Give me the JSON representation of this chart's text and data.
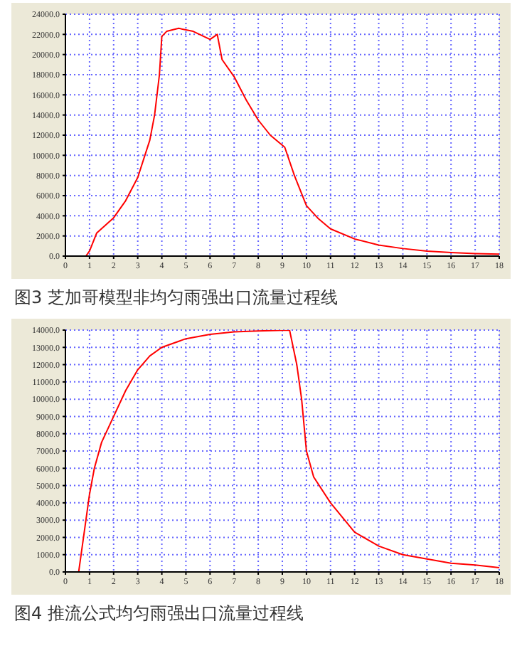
{
  "chart_data": [
    {
      "type": "line",
      "title": "图3 芝加哥模型非均匀雨强出口流量过程线",
      "grid": true,
      "xlim": [
        0,
        18
      ],
      "xticks": [
        0,
        1,
        2,
        3,
        4,
        5,
        6,
        7,
        8,
        9,
        10,
        11,
        12,
        13,
        14,
        15,
        16,
        17,
        18
      ],
      "ylim": [
        0,
        24000
      ],
      "yticks": [
        {
          "value": 0,
          "label": "0.0"
        },
        {
          "value": 2000,
          "label": "2000.0"
        },
        {
          "value": 4000,
          "label": "4000.0"
        },
        {
          "value": 6000,
          "label": "6000.0"
        },
        {
          "value": 8000,
          "label": "8000.0"
        },
        {
          "value": 10000,
          "label": "10000.0"
        },
        {
          "value": 12000,
          "label": "12000.0"
        },
        {
          "value": 14000,
          "label": "14000.0"
        },
        {
          "value": 16000,
          "label": "16000.0"
        },
        {
          "value": 18000,
          "label": "18000.0"
        },
        {
          "value": 20000,
          "label": "20000.0"
        },
        {
          "value": 22000,
          "label": "22000.0"
        },
        {
          "value": 24000,
          "label": "24000.0"
        }
      ],
      "x": [
        0.85,
        1,
        1.3,
        2,
        2.5,
        3,
        3.5,
        3.7,
        3.9,
        4,
        4.2,
        4.7,
        5.3,
        6,
        6.3,
        6.5,
        7,
        7.5,
        8,
        8.5,
        9.1,
        9.5,
        10,
        10.5,
        11,
        12,
        13,
        14,
        15,
        16,
        17,
        18
      ],
      "series": [
        {
          "color": "#ff0000",
          "values": [
            0,
            500,
            2300,
            3800,
            5500,
            7800,
            11500,
            14000,
            18000,
            21800,
            22300,
            22600,
            22300,
            21500,
            22000,
            19500,
            17800,
            15500,
            13500,
            12000,
            10800,
            8000,
            5000,
            3700,
            2700,
            1700,
            1100,
            750,
            500,
            350,
            250,
            200
          ]
        }
      ]
    },
    {
      "type": "line",
      "title": "图4 推流公式均匀雨强出口流量过程线",
      "grid": true,
      "xlim": [
        0,
        18
      ],
      "xticks": [
        0,
        1,
        2,
        3,
        4,
        5,
        6,
        7,
        8,
        9,
        10,
        11,
        12,
        13,
        14,
        15,
        16,
        17,
        18
      ],
      "ylim": [
        0,
        14000
      ],
      "yticks": [
        {
          "value": 0,
          "label": "0.0"
        },
        {
          "value": 1000,
          "label": "1000.0"
        },
        {
          "value": 2000,
          "label": "2000.0"
        },
        {
          "value": 3000,
          "label": "3000.0"
        },
        {
          "value": 4000,
          "label": "4000.0"
        },
        {
          "value": 5000,
          "label": "5000.0"
        },
        {
          "value": 6000,
          "label": "6000.0"
        },
        {
          "value": 7000,
          "label": "7000.0"
        },
        {
          "value": 8000,
          "label": "8000.0"
        },
        {
          "value": 9000,
          "label": "9000.0"
        },
        {
          "value": 10000,
          "label": "10000.0"
        },
        {
          "value": 11000,
          "label": "11000.0"
        },
        {
          "value": 12000,
          "label": "12000.0"
        },
        {
          "value": 13000,
          "label": "13000.0"
        },
        {
          "value": 14000,
          "label": "14000.0"
        }
      ],
      "x": [
        0.55,
        0.8,
        1,
        1.2,
        1.5,
        2,
        2.5,
        3,
        3.5,
        4,
        5,
        6,
        7,
        8,
        9.3,
        9.6,
        9.8,
        10,
        10.3,
        11,
        12,
        13,
        14,
        15,
        16,
        17,
        18
      ],
      "series": [
        {
          "color": "#ff0000",
          "values": [
            0,
            2500,
            4500,
            6000,
            7500,
            9000,
            10500,
            11700,
            12500,
            13000,
            13500,
            13750,
            13900,
            13950,
            14000,
            12000,
            10000,
            7000,
            5500,
            4000,
            2300,
            1500,
            1000,
            750,
            500,
            400,
            250
          ]
        }
      ]
    }
  ]
}
